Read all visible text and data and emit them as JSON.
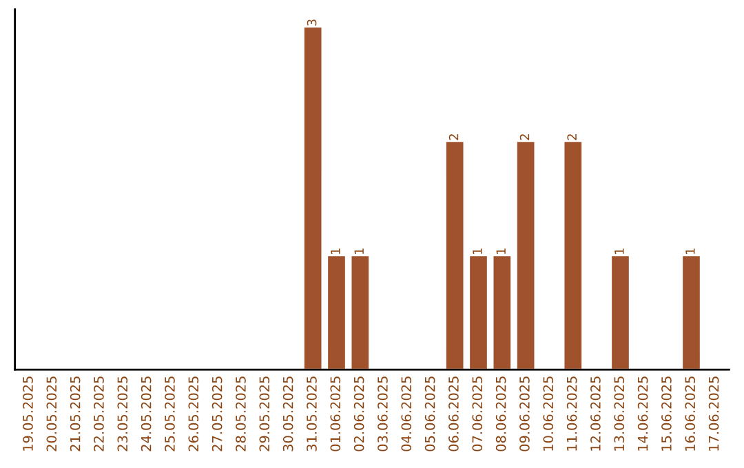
{
  "chart_data": {
    "type": "bar",
    "categories": [
      "19.05.2025",
      "20.05.2025",
      "21.05.2025",
      "22.05.2025",
      "23.05.2025",
      "24.05.2025",
      "25.05.2025",
      "26.05.2025",
      "27.05.2025",
      "28.05.2025",
      "29.05.2025",
      "30.05.2025",
      "31.05.2025",
      "01.06.2025",
      "02.06.2025",
      "03.06.2025",
      "04.06.2025",
      "05.06.2025",
      "06.06.2025",
      "07.06.2025",
      "08.06.2025",
      "09.06.2025",
      "10.06.2025",
      "11.06.2025",
      "12.06.2025",
      "13.06.2025",
      "14.06.2025",
      "15.06.2025",
      "16.06.2025",
      "17.06.2025"
    ],
    "values": [
      null,
      null,
      null,
      null,
      null,
      null,
      null,
      null,
      null,
      null,
      null,
      null,
      3,
      1,
      1,
      null,
      null,
      null,
      2,
      1,
      1,
      2,
      null,
      2,
      null,
      1,
      null,
      null,
      1,
      null
    ],
    "value_labels": [
      null,
      null,
      null,
      null,
      null,
      null,
      null,
      null,
      null,
      null,
      null,
      null,
      "3",
      "1",
      "1",
      null,
      null,
      null,
      "2",
      "1",
      "1",
      "2",
      null,
      "2",
      null,
      "1",
      null,
      null,
      "1",
      null
    ],
    "color": "#a0522d",
    "grid": false,
    "legend": false,
    "tick_labels": "x"
  }
}
